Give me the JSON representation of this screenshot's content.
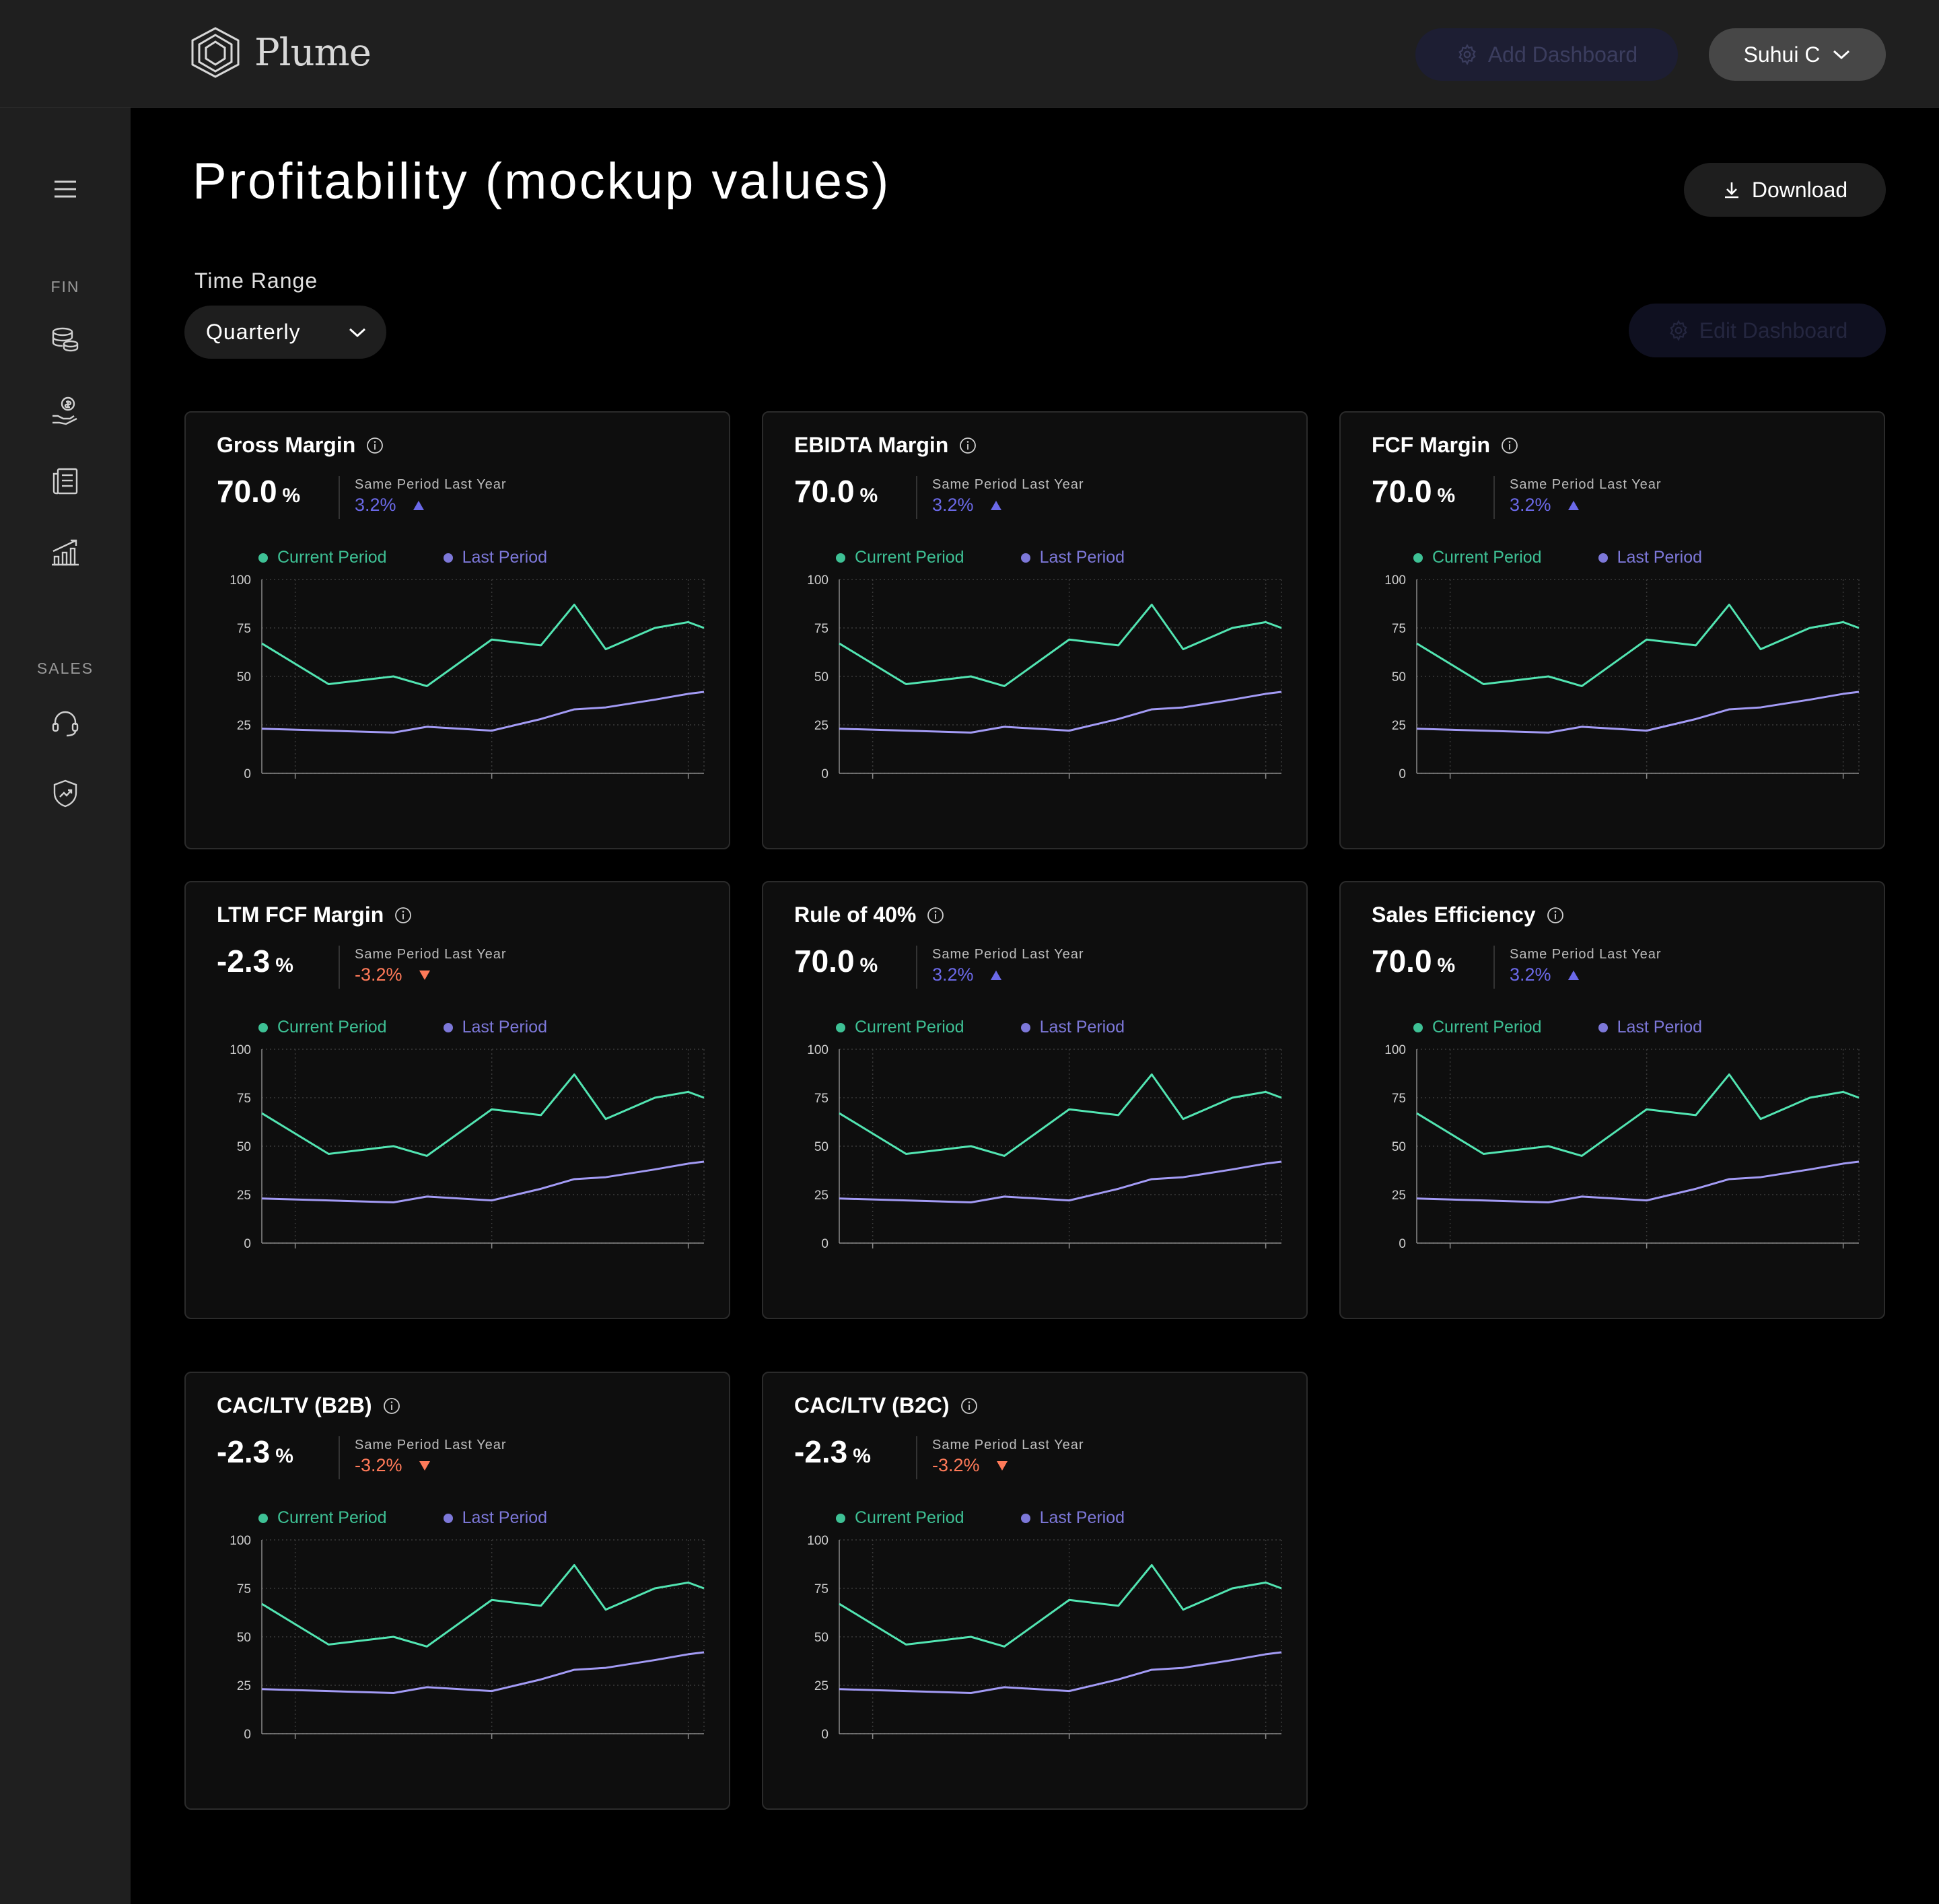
{
  "app": {
    "name": "Plume"
  },
  "header": {
    "add_dashboard_label": "Add Dashboard",
    "user_name": "Suhui C"
  },
  "sidebar": {
    "section_fin": "FIN",
    "section_sales": "SALES"
  },
  "page": {
    "title": "Profitability (mockup values)",
    "download_label": "Download"
  },
  "filters": {
    "time_range_label": "Time Range",
    "time_range_value": "Quarterly",
    "edit_dashboard_label": "Edit Dashboard"
  },
  "colors": {
    "current": "#52e5b2",
    "last": "#a39bf5",
    "positive": "#6b69e8",
    "negative": "#ff7a59",
    "current_dot": "#3ec195",
    "last_dot": "#7d78d9"
  },
  "cards": [
    {
      "title": "Gross Margin",
      "value": "70.0",
      "unit": "%",
      "compare_label": "Same Period Last Year",
      "compare_value": "3.2%",
      "trend": "up"
    },
    {
      "title": "EBIDTA Margin",
      "value": "70.0",
      "unit": "%",
      "compare_label": "Same Period Last Year",
      "compare_value": "3.2%",
      "trend": "up"
    },
    {
      "title": "FCF Margin",
      "value": "70.0",
      "unit": "%",
      "compare_label": "Same Period Last Year",
      "compare_value": "3.2%",
      "trend": "up"
    },
    {
      "title": "LTM FCF Margin",
      "value": "-2.3",
      "unit": "%",
      "compare_label": "Same Period Last Year",
      "compare_value": "-3.2%",
      "trend": "down"
    },
    {
      "title": "Rule of 40%",
      "value": "70.0",
      "unit": "%",
      "compare_label": "Same Period Last Year",
      "compare_value": "3.2%",
      "trend": "up"
    },
    {
      "title": "Sales Efficiency",
      "value": "70.0",
      "unit": "%",
      "compare_label": "Same Period Last Year",
      "compare_value": "3.2%",
      "trend": "up"
    },
    {
      "title": "CAC/LTV (B2B)",
      "value": "-2.3",
      "unit": "%",
      "compare_label": "Same Period Last Year",
      "compare_value": "-3.2%",
      "trend": "down"
    },
    {
      "title": "CAC/LTV (B2C)",
      "value": "-2.3",
      "unit": "%",
      "compare_label": "Same Period Last Year",
      "compare_value": "-3.2%",
      "trend": "down"
    }
  ],
  "chart_data": {
    "type": "line",
    "legend": [
      "Current Period",
      "Last Period"
    ],
    "x": [
      2019.83,
      2020.17,
      2020.5,
      2020.67,
      2021.0,
      2021.25,
      2021.42,
      2021.58,
      2021.83,
      2022.0,
      2022.08
    ],
    "series": [
      {
        "name": "Current Period",
        "values": [
          67,
          46,
          50,
          45,
          69,
          66,
          87,
          64,
          75,
          78,
          75
        ]
      },
      {
        "name": "Last Period",
        "values": [
          23,
          22,
          21,
          24,
          22,
          28,
          33,
          34,
          38,
          41,
          42
        ]
      }
    ],
    "x_ticks": [
      "2020",
      "2021",
      "2022"
    ],
    "y_ticks": [
      0,
      25,
      50,
      75,
      100
    ],
    "ylim": [
      0,
      100
    ],
    "grid": true
  }
}
